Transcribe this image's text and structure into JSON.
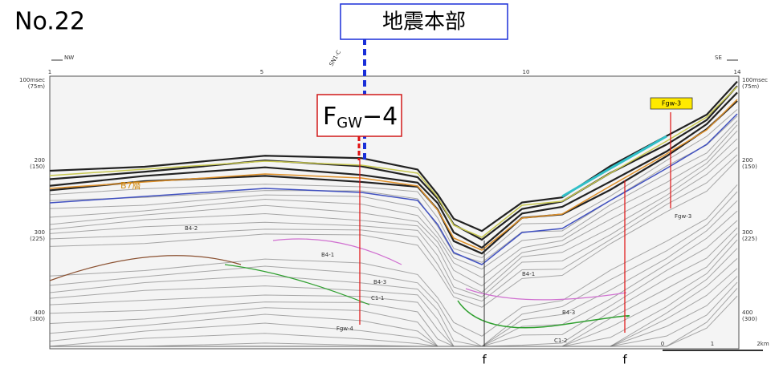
{
  "header": {
    "figure_no": "No.22",
    "agency": "地震本部"
  },
  "profile": {
    "direction_left": "NW",
    "direction_right": "SE",
    "line_label": "SN1-C",
    "top_ticks": [
      "1",
      "5",
      "10",
      "14"
    ],
    "left_axis": [
      [
        "100msec",
        "(75m)"
      ],
      [
        "200",
        "(150)"
      ],
      [
        "300",
        "(225)"
      ],
      [
        "400",
        "(300)"
      ]
    ],
    "right_axis": [
      [
        "100msec",
        "(75m)"
      ],
      [
        "200",
        "(150)"
      ],
      [
        "300",
        "(225)"
      ],
      [
        "400",
        "(300)"
      ]
    ],
    "fault_main": {
      "main": "F",
      "sub": "GW",
      "suffix": "−4"
    },
    "fault_tag": "Fgw-3",
    "fault_small_right": "Fgw-3",
    "fault_small_left": "Fgw-4",
    "layer_label": "B7層",
    "unit_labels": [
      "B4-2",
      "B4-1",
      "B4-3",
      "C1-1",
      "B4-1",
      "B4-3",
      "C1-2"
    ],
    "faults_bottom": [
      "f",
      "f"
    ],
    "scale": [
      "0",
      "1",
      "2km"
    ]
  }
}
